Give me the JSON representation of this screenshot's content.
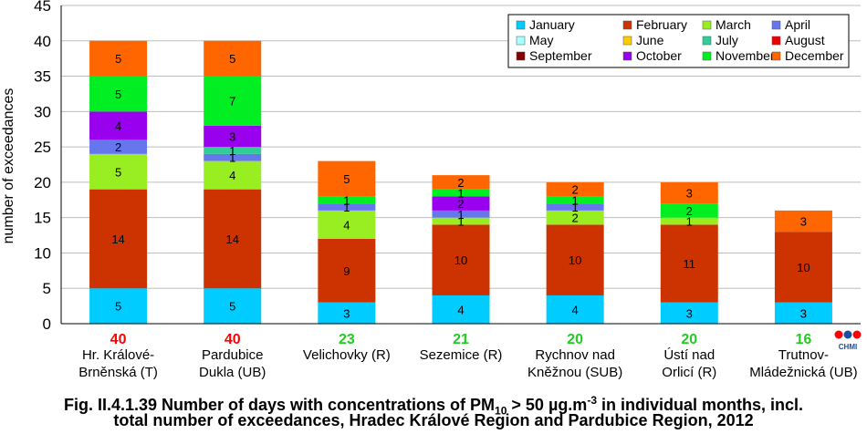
{
  "chart_data": {
    "type": "bar",
    "stacked": true,
    "ylabel": "number of exceedances",
    "ylim": [
      0,
      45
    ],
    "yticks": [
      0,
      5,
      10,
      15,
      20,
      25,
      30,
      35,
      40,
      45
    ],
    "grid": true,
    "legend_position": "top-right",
    "categories": [
      [
        "Hr. Králové-",
        "Brněnská (T)"
      ],
      [
        "Pardubice",
        "Dukla (UB)"
      ],
      [
        "Velichovky (R)"
      ],
      [
        "Sezemice (R)"
      ],
      [
        "Rychnov nad",
        "Kněžnou (SUB)"
      ],
      [
        "Ústí nad",
        "Orlicí (R)"
      ],
      [
        "Trutnov-",
        "Mládežnická (UB)"
      ]
    ],
    "totals": [
      40,
      40,
      23,
      21,
      20,
      20,
      16
    ],
    "total_colors": [
      "#ff0000",
      "#ff0000",
      "#22cc22",
      "#22cc22",
      "#22cc22",
      "#22cc22",
      "#22cc22"
    ],
    "series": [
      {
        "name": "January",
        "color": "#00ccff",
        "values": [
          5,
          5,
          3,
          4,
          4,
          3,
          3
        ]
      },
      {
        "name": "February",
        "color": "#cc3300",
        "values": [
          14,
          14,
          9,
          10,
          10,
          11,
          10
        ]
      },
      {
        "name": "March",
        "color": "#99ee22",
        "values": [
          5,
          4,
          4,
          1,
          2,
          1,
          0
        ]
      },
      {
        "name": "April",
        "color": "#6677ee",
        "values": [
          2,
          1,
          1,
          1,
          1,
          0,
          0
        ]
      },
      {
        "name": "May",
        "color": "#aaffff",
        "values": [
          0,
          0,
          0,
          0,
          0,
          0,
          0
        ]
      },
      {
        "name": "June",
        "color": "#ffcc00",
        "values": [
          0,
          0,
          0,
          0,
          0,
          0,
          0
        ]
      },
      {
        "name": "July",
        "color": "#33cc99",
        "values": [
          0,
          1,
          0,
          0,
          0,
          0,
          0
        ]
      },
      {
        "name": "August",
        "color": "#ee0000",
        "values": [
          0,
          0,
          0,
          0,
          0,
          0,
          0
        ]
      },
      {
        "name": "September",
        "color": "#880000",
        "values": [
          0,
          0,
          0,
          0,
          0,
          0,
          0
        ]
      },
      {
        "name": "October",
        "color": "#9900ee",
        "values": [
          4,
          3,
          0,
          2,
          0,
          0,
          0
        ]
      },
      {
        "name": "November",
        "color": "#00ee22",
        "values": [
          5,
          7,
          1,
          1,
          1,
          2,
          0
        ]
      },
      {
        "name": "December",
        "color": "#ff6600",
        "values": [
          5,
          5,
          5,
          2,
          2,
          3,
          3
        ]
      }
    ]
  },
  "caption": {
    "line1_prefix": "Fig. II.4.1.39  Number of days with concentrations of PM",
    "line1_sub": "10",
    "line1_mid": " > 50 µg.m",
    "line1_sup": "-3",
    "line1_suffix": " in individual months, incl.",
    "line2": "total number of exceedances, Hradec Králové Region and Pardubice Region, 2012"
  },
  "logo": {
    "text": "CHMI"
  }
}
